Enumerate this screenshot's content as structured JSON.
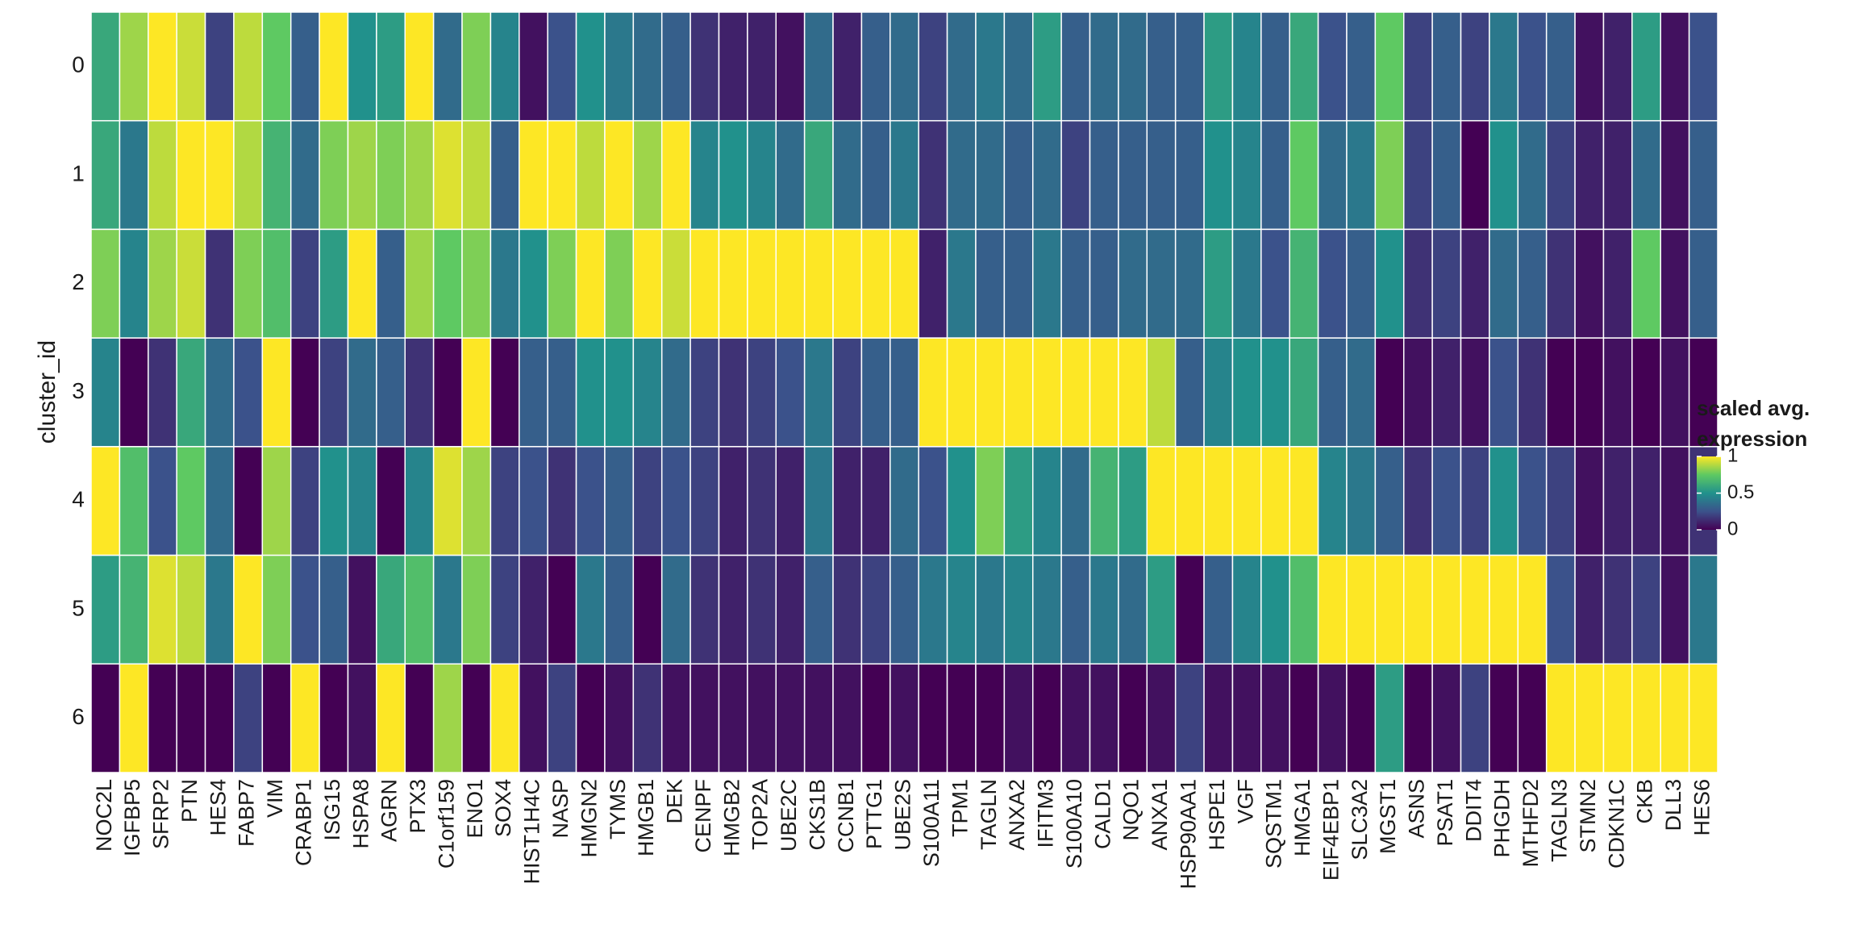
{
  "chart_data": {
    "type": "heatmap",
    "x": [
      "NOC2L",
      "IGFBP5",
      "SFRP2",
      "PTN",
      "HES4",
      "FABP7",
      "VIM",
      "CRABP1",
      "ISG15",
      "HSPA8",
      "AGRN",
      "PTX3",
      "C1orf159",
      "ENO1",
      "SOX4",
      "HIST1H4C",
      "NASP",
      "HMGN2",
      "TYMS",
      "HMGB1",
      "DEK",
      "CENPF",
      "HMGB2",
      "TOP2A",
      "UBE2C",
      "CKS1B",
      "CCNB1",
      "PTTG1",
      "UBE2S",
      "S100A11",
      "TPM1",
      "TAGLN",
      "ANXA2",
      "IFITM3",
      "S100A10",
      "CALD1",
      "NQO1",
      "ANXA1",
      "HSP90AA1",
      "HSPE1",
      "VGF",
      "SQSTM1",
      "HMGA1",
      "EIF4EBP1",
      "SLC3A2",
      "MGST1",
      "ASNS",
      "PSAT1",
      "DDIT4",
      "PHGDH",
      "MTHFD2",
      "TAGLN3",
      "STMN2",
      "CDKN1C",
      "CKB",
      "DLL3",
      "HES6"
    ],
    "y": [
      "0",
      "1",
      "2",
      "3",
      "4",
      "5",
      "6"
    ],
    "y_label": "cluster_id",
    "z": [
      [
        0.6,
        0.85,
        1,
        0.92,
        0.2,
        0.9,
        0.75,
        0.3,
        1,
        0.5,
        0.55,
        1,
        0.35,
        0.8,
        0.45,
        0.05,
        0.25,
        0.5,
        0.4,
        0.35,
        0.3,
        0.15,
        0.1,
        0.1,
        0.05,
        0.35,
        0.1,
        0.3,
        0.35,
        0.2,
        0.35,
        0.4,
        0.35,
        0.55,
        0.3,
        0.35,
        0.35,
        0.3,
        0.3,
        0.55,
        0.45,
        0.3,
        0.6,
        0.25,
        0.3,
        0.75,
        0.2,
        0.3,
        0.2,
        0.4,
        0.25,
        0.3,
        0.05,
        0.1,
        0.55,
        0.05,
        0.25
      ],
      [
        0.6,
        0.4,
        0.9,
        1,
        1,
        0.88,
        0.65,
        0.35,
        0.8,
        0.85,
        0.8,
        0.85,
        0.95,
        0.9,
        0.3,
        1,
        1,
        0.9,
        1,
        0.85,
        1,
        0.45,
        0.5,
        0.45,
        0.35,
        0.6,
        0.35,
        0.3,
        0.4,
        0.15,
        0.35,
        0.35,
        0.3,
        0.35,
        0.2,
        0.3,
        0.3,
        0.3,
        0.3,
        0.5,
        0.45,
        0.3,
        0.75,
        0.35,
        0.4,
        0.8,
        0.2,
        0.3,
        0,
        0.5,
        0.35,
        0.2,
        0.1,
        0.1,
        0.35,
        0.05,
        0.3
      ],
      [
        0.8,
        0.45,
        0.85,
        0.92,
        0.15,
        0.8,
        0.7,
        0.2,
        0.55,
        1,
        0.3,
        0.85,
        0.75,
        0.8,
        0.4,
        0.5,
        0.8,
        1,
        0.8,
        1,
        0.92,
        1,
        1,
        1,
        1,
        1,
        1,
        1,
        1,
        0.1,
        0.4,
        0.3,
        0.3,
        0.4,
        0.3,
        0.3,
        0.35,
        0.35,
        0.35,
        0.55,
        0.4,
        0.25,
        0.65,
        0.25,
        0.3,
        0.5,
        0.15,
        0.2,
        0.1,
        0.35,
        0.3,
        0.15,
        0.05,
        0.1,
        0.75,
        0.05,
        0.3
      ],
      [
        0.45,
        0,
        0.15,
        0.6,
        0.35,
        0.25,
        1,
        0,
        0.2,
        0.35,
        0.3,
        0.15,
        0,
        1,
        0,
        0.3,
        0.3,
        0.5,
        0.5,
        0.45,
        0.35,
        0.2,
        0.15,
        0.2,
        0.25,
        0.4,
        0.2,
        0.3,
        0.3,
        1,
        1,
        1,
        1,
        1,
        1,
        1,
        1,
        0.9,
        0.3,
        0.45,
        0.5,
        0.5,
        0.6,
        0.3,
        0.35,
        0,
        0.05,
        0.1,
        0.05,
        0.25,
        0.15,
        0,
        0,
        0.05,
        0,
        0.05,
        0
      ],
      [
        1,
        0.7,
        0.25,
        0.75,
        0.35,
        0,
        0.85,
        0.2,
        0.5,
        0.45,
        0,
        0.45,
        0.95,
        0.85,
        0.2,
        0.25,
        0.15,
        0.25,
        0.3,
        0.2,
        0.25,
        0.2,
        0.1,
        0.15,
        0.1,
        0.4,
        0.1,
        0.1,
        0.35,
        0.25,
        0.5,
        0.8,
        0.55,
        0.45,
        0.35,
        0.65,
        0.55,
        1,
        1,
        1,
        1,
        1,
        1,
        0.45,
        0.4,
        0.3,
        0.15,
        0.25,
        0.2,
        0.5,
        0.25,
        0.2,
        0.05,
        0.1,
        0.1,
        0.05,
        0.15
      ],
      [
        0.55,
        0.65,
        0.95,
        0.9,
        0.4,
        1,
        0.8,
        0.25,
        0.3,
        0.05,
        0.6,
        0.7,
        0.4,
        0.8,
        0.2,
        0.1,
        0,
        0.4,
        0.3,
        0,
        0.35,
        0.15,
        0.1,
        0.15,
        0.1,
        0.3,
        0.15,
        0.2,
        0.3,
        0.4,
        0.45,
        0.4,
        0.45,
        0.4,
        0.3,
        0.4,
        0.35,
        0.55,
        0,
        0.3,
        0.45,
        0.5,
        0.7,
        1,
        1,
        1,
        1,
        1,
        1,
        1,
        1,
        0.25,
        0.1,
        0.15,
        0.2,
        0.05,
        0.4
      ],
      [
        0,
        1,
        0,
        0,
        0,
        0.2,
        0,
        1,
        0,
        0.05,
        1,
        0,
        0.85,
        0,
        1,
        0.05,
        0.2,
        0,
        0.05,
        0.15,
        0.05,
        0.05,
        0.05,
        0.05,
        0.05,
        0.05,
        0.05,
        0,
        0.05,
        0,
        0,
        0,
        0.05,
        0,
        0.05,
        0.05,
        0,
        0.05,
        0.2,
        0.05,
        0.05,
        0.05,
        0,
        0.05,
        0,
        0.55,
        0,
        0.05,
        0.2,
        0,
        0,
        1,
        1,
        1,
        1,
        1,
        1
      ]
    ],
    "colorscale": [
      "#440154",
      "#3b528b",
      "#21918c",
      "#5ec962",
      "#fde725"
    ],
    "zlim": [
      0,
      1
    ],
    "legend_title": [
      "scaled avg.",
      "expression"
    ],
    "colorbar_ticks": [
      0,
      0.5,
      1
    ]
  }
}
